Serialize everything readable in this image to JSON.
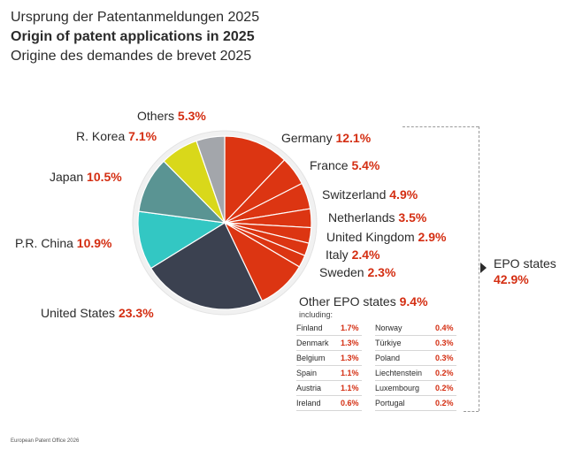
{
  "header": {
    "title_de": "Ursprung der Patentanmeldungen 2025",
    "title_en": "Origin of patent applications in 2025",
    "title_fr": "Origine des demandes de brevet 2025"
  },
  "chart_data": {
    "type": "pie",
    "slices": [
      {
        "name": "Germany",
        "value": 12.1,
        "pct": "12.1%",
        "color": "#dc3512"
      },
      {
        "name": "France",
        "value": 5.4,
        "pct": "5.4%",
        "color": "#dc3512"
      },
      {
        "name": "Switzerland",
        "value": 4.9,
        "pct": "4.9%",
        "color": "#dc3512"
      },
      {
        "name": "Netherlands",
        "value": 3.5,
        "pct": "3.5%",
        "color": "#dc3512"
      },
      {
        "name": "United Kingdom",
        "value": 2.9,
        "pct": "2.9%",
        "color": "#dc3512"
      },
      {
        "name": "Italy",
        "value": 2.4,
        "pct": "2.4%",
        "color": "#dc3512"
      },
      {
        "name": "Sweden",
        "value": 2.3,
        "pct": "2.3%",
        "color": "#dc3512"
      },
      {
        "name": "Other EPO states",
        "value": 9.4,
        "pct": "9.4%",
        "color": "#dc3512"
      },
      {
        "name": "United States",
        "value": 23.3,
        "pct": "23.3%",
        "color": "#3b4150"
      },
      {
        "name": "P.R. China",
        "value": 10.9,
        "pct": "10.9%",
        "color": "#33c7c3"
      },
      {
        "name": "Japan",
        "value": 10.5,
        "pct": "10.5%",
        "color": "#5a9493"
      },
      {
        "name": "R. Korea",
        "value": 7.1,
        "pct": "7.1%",
        "color": "#d9d81a"
      },
      {
        "name": "Others",
        "value": 5.3,
        "pct": "5.3%",
        "color": "#a3a6ab"
      }
    ],
    "group": {
      "name": "EPO states",
      "pct": "42.9%"
    },
    "other_epo_breakdown": {
      "including_label": "including:",
      "left": [
        {
          "name": "Finland",
          "pct": "1.7%"
        },
        {
          "name": "Denmark",
          "pct": "1.3%"
        },
        {
          "name": "Belgium",
          "pct": "1.3%"
        },
        {
          "name": "Spain",
          "pct": "1.1%"
        },
        {
          "name": "Austria",
          "pct": "1.1%"
        },
        {
          "name": "Ireland",
          "pct": "0.6%"
        }
      ],
      "right": [
        {
          "name": "Norway",
          "pct": "0.4%"
        },
        {
          "name": "Türkiye",
          "pct": "0.3%"
        },
        {
          "name": "Poland",
          "pct": "0.3%"
        },
        {
          "name": "Liechtenstein",
          "pct": "0.2%"
        },
        {
          "name": "Luxembourg",
          "pct": "0.2%"
        },
        {
          "name": "Portugal",
          "pct": "0.2%"
        }
      ]
    }
  },
  "footer": {
    "source": "European Patent Office 2026"
  }
}
